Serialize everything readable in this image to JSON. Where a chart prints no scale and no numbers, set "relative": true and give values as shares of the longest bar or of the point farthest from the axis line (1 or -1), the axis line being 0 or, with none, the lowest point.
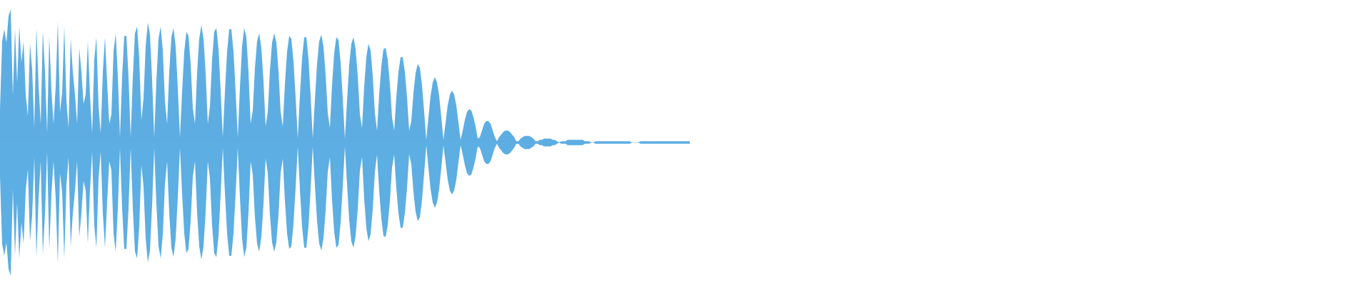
{
  "chart_data": {
    "type": "area",
    "relative": true,
    "categories": [
      null,
      null,
      null,
      null,
      null,
      null,
      null,
      null,
      null,
      null,
      null,
      null,
      null,
      null,
      null,
      null,
      null,
      null,
      null,
      null,
      null,
      null,
      null,
      null,
      null,
      null,
      null,
      null,
      null,
      null,
      null,
      null,
      null,
      null,
      null,
      null,
      null,
      null,
      null,
      null,
      null,
      null,
      null,
      null,
      null,
      null,
      null,
      null,
      null,
      null,
      null,
      null,
      null,
      null,
      null,
      null,
      null,
      null,
      null,
      null,
      null,
      null,
      null,
      null,
      null,
      null,
      null,
      null,
      null,
      null,
      null,
      null,
      null,
      null,
      null,
      null,
      null,
      null,
      null,
      null,
      null,
      null,
      null,
      null,
      null,
      null,
      null,
      null,
      null,
      null,
      null,
      null,
      null,
      null,
      null,
      null,
      null,
      null,
      null,
      null,
      null,
      null,
      null,
      null,
      null,
      null,
      null,
      null,
      null,
      null,
      null,
      null,
      null,
      null,
      null,
      null,
      null,
      null,
      null,
      null,
      null,
      null,
      null,
      null,
      null,
      null,
      null,
      null,
      null,
      null,
      null,
      null,
      null,
      null,
      null,
      null,
      null,
      null,
      null,
      null,
      null,
      null,
      null,
      null,
      null,
      null,
      null,
      null,
      null,
      null,
      null,
      null,
      null,
      null,
      null,
      null,
      null,
      null,
      null,
      null,
      null,
      null,
      null,
      null,
      null,
      null,
      null,
      null,
      null,
      null,
      null,
      null,
      null,
      null,
      null,
      null,
      null,
      null,
      null,
      null,
      null,
      null,
      null,
      null,
      null,
      null,
      null,
      null,
      null,
      null,
      null,
      null,
      null,
      null,
      null,
      null,
      null,
      null,
      null,
      null,
      null,
      null,
      null,
      null,
      null,
      null,
      null,
      null,
      null,
      null,
      null,
      null,
      null,
      null,
      null,
      null,
      null,
      null,
      null,
      null,
      null,
      null,
      null,
      null,
      null,
      null,
      null,
      null,
      null,
      null,
      null,
      null,
      null,
      null,
      null,
      null,
      null,
      null,
      null,
      null,
      null,
      null,
      null,
      null,
      null,
      null,
      null,
      null,
      null,
      null,
      null,
      null,
      null,
      null,
      null,
      null,
      null,
      null,
      null,
      null,
      null,
      null,
      null,
      null,
      null,
      null,
      null,
      null,
      null,
      null,
      null,
      null,
      null,
      null,
      null,
      null,
      null,
      null,
      null,
      null,
      null,
      null,
      null,
      null,
      null,
      null,
      null,
      null,
      null,
      null,
      null,
      null,
      null,
      null,
      null,
      null,
      null,
      null,
      null,
      null,
      null,
      null,
      null,
      null,
      null,
      null,
      null,
      null,
      null,
      null,
      null,
      null,
      null,
      null,
      null,
      null,
      null,
      null,
      null,
      null,
      null,
      null,
      null
    ],
    "series": [
      {
        "color": "#5dade2",
        "values": [
          0.25,
          0.76,
          0.85,
          0.75,
          0.95,
          1,
          0.35,
          0.85,
          0.45,
          0.87,
          0.6,
          0.76,
          0.36,
          0.2,
          0.74,
          0.55,
          0.11,
          0.86,
          0.43,
          0.14,
          0.84,
          0.53,
          0.07,
          0.8,
          0.39,
          0.14,
          0.42,
          0.91,
          0.23,
          0.37,
          0.87,
          0.32,
          0.11,
          0.78,
          0.53,
          0.36,
          0.14,
          0.71,
          0.53,
          0.29,
          0.36,
          0.76,
          0.36,
          0.07,
          0.62,
          0.79,
          0.27,
          0.07,
          0.53,
          0.79,
          0.45,
          0.14,
          0.21,
          0.68,
          0.82,
          0.5,
          0.04,
          0.49,
          0.8,
          0.8,
          0.49,
          0.04,
          0.49,
          0.82,
          0.87,
          0.63,
          0.17,
          0.33,
          0.72,
          0.9,
          0.81,
          0.47,
          0.04,
          0.46,
          0.78,
          0.87,
          0.69,
          0.31,
          0.14,
          0.53,
          0.79,
          0.86,
          0.72,
          0.41,
          0.04,
          0.38,
          0.68,
          0.83,
          0.8,
          0.59,
          0.26,
          0.14,
          0.52,
          0.78,
          0.88,
          0.78,
          0.52,
          0.14,
          0.27,
          0.62,
          0.83,
          0.86,
          0.7,
          0.39,
          0.04,
          0.38,
          0.68,
          0.85,
          0.85,
          0.68,
          0.38,
          0.04,
          0.41,
          0.72,
          0.86,
          0.79,
          0.53,
          0.14,
          0.24,
          0.56,
          0.76,
          0.82,
          0.71,
          0.46,
          0.12,
          0.23,
          0.54,
          0.75,
          0.82,
          0.75,
          0.54,
          0.23,
          0.12,
          0.44,
          0.68,
          0.8,
          0.78,
          0.61,
          0.34,
          0.03,
          0.35,
          0.63,
          0.79,
          0.79,
          0.63,
          0.35,
          0.03,
          0.32,
          0.59,
          0.76,
          0.81,
          0.72,
          0.51,
          0.22,
          0.11,
          0.43,
          0.67,
          0.79,
          0.77,
          0.6,
          0.33,
          0.03,
          0.31,
          0.58,
          0.74,
          0.79,
          0.7,
          0.5,
          0.21,
          0.11,
          0.42,
          0.64,
          0.74,
          0.69,
          0.5,
          0.22,
          0.09,
          0.36,
          0.57,
          0.7,
          0.71,
          0.62,
          0.44,
          0.19,
          0.09,
          0.34,
          0.53,
          0.64,
          0.64,
          0.53,
          0.34,
          0.09,
          0.16,
          0.37,
          0.52,
          0.59,
          0.56,
          0.43,
          0.23,
          0.02,
          0.19,
          0.35,
          0.45,
          0.49,
          0.45,
          0.35,
          0.19,
          0.02,
          0.15,
          0.28,
          0.36,
          0.39,
          0.36,
          0.28,
          0.15,
          0.02,
          0.09,
          0.17,
          0.23,
          0.25,
          0.24,
          0.19,
          0.12,
          0.03,
          0.04,
          0.09,
          0.14,
          0.16,
          0.16,
          0.14,
          0.09,
          0.04,
          0.01,
          0.04,
          0.06,
          0.08,
          0.09,
          0.09,
          0.08,
          0.06,
          0.04,
          0.01,
          0.01,
          0.03,
          0.04,
          0.05,
          0.05,
          0.05,
          0.04,
          0.03,
          0.01,
          0.01,
          0.02,
          0.02,
          0.03,
          0.03,
          0.03,
          0.03,
          0.02,
          0.02,
          0.01,
          0,
          0.01,
          0.01,
          0.01,
          0.02,
          0.02,
          0.02,
          0.02,
          0.02,
          0.02,
          0.02,
          0.02,
          0.01,
          0.01,
          0.01,
          0,
          0,
          0.01,
          0.01,
          0.01,
          0.01,
          0.01,
          0.01,
          0.01,
          0.01,
          0.01,
          0.01,
          0.01,
          0.01,
          0.01,
          0.01,
          0.01,
          0.01,
          0.01,
          0,
          0,
          0,
          0,
          0.01,
          0.01,
          0.01,
          0.01,
          0.01,
          0.01,
          0.01,
          0.01,
          0.01,
          0.01,
          0.01,
          0.01,
          0.01,
          0.01,
          0.01,
          0.01,
          0.01,
          0.01,
          0.01,
          0.01,
          0.01,
          0.01,
          0.01,
          0.01
        ]
      },
      {
        "color": "#5caee3",
        "values": [
          -0.25,
          -0.76,
          -0.85,
          -0.75,
          -0.95,
          -1,
          -0.35,
          -0.85,
          -0.45,
          -0.87,
          -0.6,
          -0.76,
          -0.36,
          -0.2,
          -0.74,
          -0.55,
          -0.11,
          -0.86,
          -0.43,
          -0.14,
          -0.84,
          -0.53,
          -0.07,
          -0.8,
          -0.39,
          -0.14,
          -0.42,
          -0.91,
          -0.23,
          -0.37,
          -0.87,
          -0.32,
          -0.11,
          -0.78,
          -0.53,
          -0.36,
          -0.14,
          -0.71,
          -0.53,
          -0.29,
          -0.36,
          -0.76,
          -0.36,
          -0.07,
          -0.62,
          -0.79,
          -0.27,
          -0.07,
          -0.53,
          -0.79,
          -0.45,
          -0.14,
          -0.21,
          -0.68,
          -0.82,
          -0.5,
          -0.04,
          -0.49,
          -0.8,
          -0.8,
          -0.49,
          -0.04,
          -0.49,
          -0.82,
          -0.87,
          -0.63,
          -0.17,
          -0.33,
          -0.72,
          -0.9,
          -0.81,
          -0.47,
          -0.04,
          -0.46,
          -0.78,
          -0.87,
          -0.69,
          -0.31,
          -0.14,
          -0.53,
          -0.79,
          -0.86,
          -0.72,
          -0.41,
          -0.04,
          -0.38,
          -0.68,
          -0.83,
          -0.8,
          -0.59,
          -0.26,
          -0.14,
          -0.52,
          -0.78,
          -0.88,
          -0.78,
          -0.52,
          -0.14,
          -0.27,
          -0.62,
          -0.83,
          -0.86,
          -0.7,
          -0.39,
          -0.04,
          -0.38,
          -0.68,
          -0.85,
          -0.85,
          -0.68,
          -0.38,
          -0.04,
          -0.41,
          -0.72,
          -0.86,
          -0.79,
          -0.53,
          -0.14,
          -0.24,
          -0.56,
          -0.76,
          -0.82,
          -0.71,
          -0.46,
          -0.12,
          -0.23,
          -0.54,
          -0.75,
          -0.82,
          -0.75,
          -0.54,
          -0.23,
          -0.12,
          -0.44,
          -0.68,
          -0.8,
          -0.78,
          -0.61,
          -0.34,
          -0.03,
          -0.35,
          -0.63,
          -0.79,
          -0.79,
          -0.63,
          -0.35,
          -0.03,
          -0.32,
          -0.59,
          -0.76,
          -0.81,
          -0.72,
          -0.51,
          -0.22,
          -0.11,
          -0.43,
          -0.67,
          -0.79,
          -0.77,
          -0.6,
          -0.33,
          -0.03,
          -0.31,
          -0.58,
          -0.74,
          -0.79,
          -0.7,
          -0.5,
          -0.21,
          -0.11,
          -0.42,
          -0.64,
          -0.74,
          -0.69,
          -0.5,
          -0.22,
          -0.09,
          -0.36,
          -0.57,
          -0.7,
          -0.71,
          -0.62,
          -0.44,
          -0.19,
          -0.09,
          -0.34,
          -0.53,
          -0.64,
          -0.64,
          -0.53,
          -0.34,
          -0.09,
          -0.16,
          -0.37,
          -0.52,
          -0.59,
          -0.56,
          -0.43,
          -0.23,
          -0.02,
          -0.19,
          -0.35,
          -0.45,
          -0.49,
          -0.45,
          -0.35,
          -0.19,
          -0.02,
          -0.15,
          -0.28,
          -0.36,
          -0.39,
          -0.36,
          -0.28,
          -0.15,
          -0.02,
          -0.09,
          -0.17,
          -0.23,
          -0.25,
          -0.24,
          -0.19,
          -0.12,
          -0.03,
          -0.04,
          -0.09,
          -0.14,
          -0.16,
          -0.16,
          -0.14,
          -0.09,
          -0.04,
          -0.01,
          -0.04,
          -0.06,
          -0.08,
          -0.09,
          -0.09,
          -0.08,
          -0.06,
          -0.04,
          -0.01,
          -0.01,
          -0.03,
          -0.04,
          -0.05,
          -0.05,
          -0.05,
          -0.04,
          -0.03,
          -0.01,
          -0.01,
          -0.02,
          -0.02,
          -0.03,
          -0.03,
          -0.03,
          -0.03,
          -0.02,
          -0.02,
          -0.01,
          0,
          -0.01,
          -0.01,
          -0.01,
          -0.02,
          -0.02,
          -0.02,
          -0.02,
          -0.02,
          -0.02,
          -0.02,
          -0.02,
          -0.01,
          -0.01,
          -0.01,
          0,
          0,
          -0.01,
          -0.01,
          -0.01,
          -0.01,
          -0.01,
          -0.01,
          -0.01,
          -0.01,
          -0.01,
          -0.01,
          -0.01,
          -0.01,
          -0.01,
          -0.01,
          -0.01,
          -0.01,
          -0.01,
          0,
          0,
          0,
          0,
          -0.01,
          -0.01,
          -0.01,
          -0.01,
          -0.01,
          -0.01,
          -0.01,
          -0.01,
          -0.01,
          -0.01,
          -0.01,
          -0.01,
          -0.01,
          -0.01,
          -0.01,
          -0.01,
          -0.01,
          -0.01,
          -0.01,
          -0.01,
          -0.01,
          -0.01,
          -0.01,
          -0.01
        ]
      }
    ],
    "ref_lines": [
      {
        "axis": "y",
        "value": 0,
        "color": "#b5d6ee"
      }
    ]
  }
}
